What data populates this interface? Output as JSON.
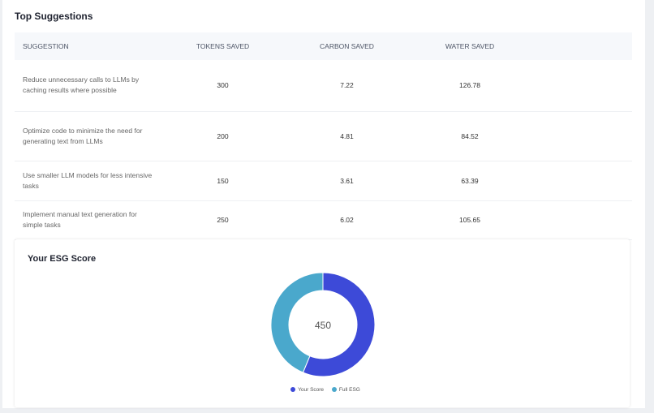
{
  "title": "Top Suggestions",
  "columns": [
    "SUGGESTION",
    "TOKENS SAVED",
    "CARBON SAVED",
    "WATER SAVED"
  ],
  "rows": [
    [
      "Reduce unnecessary calls to LLMs by caching results where possible",
      "300",
      "7.22",
      "126.78"
    ],
    [
      "Optimize code to minimize the need for generating text from LLMs",
      "200",
      "4.81",
      "84.52"
    ],
    [
      "Use smaller LLM models for less intensive tasks",
      "150",
      "3.61",
      "63.39"
    ],
    [
      "Implement manual text generation for simple tasks",
      "250",
      "6.02",
      "105.65"
    ]
  ],
  "esg": {
    "title": "Your ESG Score",
    "center_label": "450",
    "chart_data": {
      "type": "pie",
      "series": [
        {
          "name": "Your Score",
          "value": 450,
          "color": "#3d4ad8"
        },
        {
          "name": "Full ESG",
          "value": 350,
          "color": "#4aa8cc"
        }
      ],
      "legend": "bottom"
    }
  }
}
